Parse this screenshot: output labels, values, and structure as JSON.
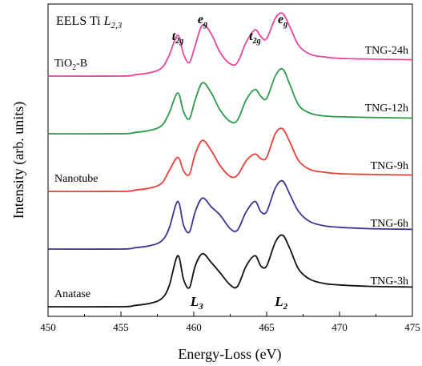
{
  "chart_data": {
    "type": "line",
    "title": "EELS Ti ",
    "title_sub": "L",
    "title_subscript": "2,3",
    "xlabel": "Energy-Loss (eV)",
    "ylabel": "Intensity (arb. units)",
    "xlim": [
      450,
      475
    ],
    "xticks": [
      450,
      455,
      460,
      465,
      470,
      475
    ],
    "y_ticks_shown": false,
    "grid": false,
    "legend": "none",
    "series": [
      {
        "name": "TNG-24h",
        "color": "#e8459a",
        "offset": 4,
        "points": [
          [
            450,
            0.0
          ],
          [
            455,
            0.0
          ],
          [
            456,
            0.02
          ],
          [
            457,
            0.05
          ],
          [
            457.8,
            0.12
          ],
          [
            458.3,
            0.3
          ],
          [
            458.9,
            0.6
          ],
          [
            459.3,
            0.32
          ],
          [
            459.7,
            0.2
          ],
          [
            460.1,
            0.45
          ],
          [
            460.6,
            0.75
          ],
          [
            461.2,
            0.62
          ],
          [
            461.8,
            0.35
          ],
          [
            462.5,
            0.18
          ],
          [
            463,
            0.2
          ],
          [
            463.6,
            0.5
          ],
          [
            464.2,
            0.68
          ],
          [
            464.6,
            0.58
          ],
          [
            465,
            0.55
          ],
          [
            465.6,
            0.85
          ],
          [
            466.1,
            0.92
          ],
          [
            466.6,
            0.72
          ],
          [
            467.2,
            0.45
          ],
          [
            468,
            0.32
          ],
          [
            469,
            0.28
          ],
          [
            470,
            0.26
          ],
          [
            472,
            0.25
          ],
          [
            475,
            0.24
          ]
        ]
      },
      {
        "name": "TNG-12h",
        "color": "#2e9a4e",
        "offset": 3,
        "points": [
          [
            450,
            0.0
          ],
          [
            455,
            0.0
          ],
          [
            456,
            0.02
          ],
          [
            457,
            0.05
          ],
          [
            457.8,
            0.12
          ],
          [
            458.3,
            0.3
          ],
          [
            458.9,
            0.6
          ],
          [
            459.3,
            0.32
          ],
          [
            459.7,
            0.22
          ],
          [
            460.1,
            0.5
          ],
          [
            460.6,
            0.75
          ],
          [
            461.2,
            0.6
          ],
          [
            461.8,
            0.35
          ],
          [
            462.5,
            0.18
          ],
          [
            463,
            0.2
          ],
          [
            463.6,
            0.5
          ],
          [
            464.2,
            0.65
          ],
          [
            464.6,
            0.55
          ],
          [
            465,
            0.52
          ],
          [
            465.6,
            0.85
          ],
          [
            466.1,
            0.95
          ],
          [
            466.6,
            0.72
          ],
          [
            467.2,
            0.42
          ],
          [
            468,
            0.3
          ],
          [
            469,
            0.26
          ],
          [
            470,
            0.25
          ],
          [
            472,
            0.24
          ],
          [
            475,
            0.23
          ]
        ]
      },
      {
        "name": "TNG-9h",
        "color": "#e8413a",
        "offset": 2,
        "points": [
          [
            450,
            0.0
          ],
          [
            455,
            0.0
          ],
          [
            456,
            0.02
          ],
          [
            457,
            0.05
          ],
          [
            457.8,
            0.12
          ],
          [
            458.3,
            0.3
          ],
          [
            458.9,
            0.5
          ],
          [
            459.3,
            0.3
          ],
          [
            459.7,
            0.25
          ],
          [
            460.1,
            0.55
          ],
          [
            460.6,
            0.75
          ],
          [
            461.2,
            0.6
          ],
          [
            461.8,
            0.38
          ],
          [
            462.5,
            0.22
          ],
          [
            463,
            0.24
          ],
          [
            463.6,
            0.45
          ],
          [
            464.2,
            0.55
          ],
          [
            464.6,
            0.48
          ],
          [
            465,
            0.5
          ],
          [
            465.6,
            0.85
          ],
          [
            466.1,
            0.92
          ],
          [
            466.6,
            0.72
          ],
          [
            467.2,
            0.45
          ],
          [
            468,
            0.32
          ],
          [
            469,
            0.28
          ],
          [
            470,
            0.26
          ],
          [
            472,
            0.25
          ],
          [
            475,
            0.24
          ]
        ]
      },
      {
        "name": "TNG-6h",
        "color": "#3d3592",
        "offset": 1,
        "points": [
          [
            450,
            0.0
          ],
          [
            455,
            0.0
          ],
          [
            456,
            0.02
          ],
          [
            457,
            0.05
          ],
          [
            457.8,
            0.12
          ],
          [
            458.3,
            0.3
          ],
          [
            458.9,
            0.7
          ],
          [
            459.3,
            0.35
          ],
          [
            459.7,
            0.25
          ],
          [
            460.1,
            0.55
          ],
          [
            460.6,
            0.75
          ],
          [
            461.2,
            0.62
          ],
          [
            461.8,
            0.5
          ],
          [
            462.5,
            0.3
          ],
          [
            463,
            0.28
          ],
          [
            463.6,
            0.55
          ],
          [
            464.2,
            0.7
          ],
          [
            464.6,
            0.55
          ],
          [
            465,
            0.55
          ],
          [
            465.6,
            0.9
          ],
          [
            466.1,
            1.0
          ],
          [
            466.6,
            0.8
          ],
          [
            467.2,
            0.55
          ],
          [
            468,
            0.4
          ],
          [
            469,
            0.34
          ],
          [
            470,
            0.32
          ],
          [
            472,
            0.3
          ],
          [
            475,
            0.29
          ]
        ]
      },
      {
        "name": "TNG-3h",
        "color": "#111111",
        "offset": 0,
        "points": [
          [
            450,
            0.0
          ],
          [
            455,
            0.0
          ],
          [
            456,
            0.02
          ],
          [
            457,
            0.05
          ],
          [
            457.8,
            0.12
          ],
          [
            458.3,
            0.3
          ],
          [
            458.9,
            0.75
          ],
          [
            459.3,
            0.4
          ],
          [
            459.7,
            0.28
          ],
          [
            460.1,
            0.6
          ],
          [
            460.6,
            0.78
          ],
          [
            461.2,
            0.65
          ],
          [
            461.8,
            0.5
          ],
          [
            462.5,
            0.32
          ],
          [
            463,
            0.3
          ],
          [
            463.6,
            0.6
          ],
          [
            464.2,
            0.75
          ],
          [
            464.6,
            0.6
          ],
          [
            465,
            0.6
          ],
          [
            465.6,
            0.95
          ],
          [
            466.1,
            1.05
          ],
          [
            466.6,
            0.85
          ],
          [
            467.2,
            0.55
          ],
          [
            468,
            0.4
          ],
          [
            469,
            0.34
          ],
          [
            470,
            0.32
          ],
          [
            472,
            0.3
          ],
          [
            475,
            0.29
          ]
        ]
      }
    ],
    "sample_labels": [
      {
        "text": "TiO",
        "sub": "2",
        "rest": "-B",
        "row": 4
      },
      {
        "text": "Nanotube",
        "row": 2
      },
      {
        "text": "Anatase",
        "row": 0
      }
    ],
    "annotations": {
      "peaks_top": [
        {
          "main": "t",
          "sub": "2g",
          "x": 458.9
        },
        {
          "main": "e",
          "sub": "g",
          "x": 460.6
        },
        {
          "main": "t",
          "sub": "2g",
          "x": 464.2
        },
        {
          "main": "e",
          "sub": "g",
          "x": 466.1
        }
      ],
      "edges_bottom": [
        {
          "main": "L",
          "sub": "3",
          "x": 460.2
        },
        {
          "main": "L",
          "sub": "2",
          "x": 466.0
        }
      ]
    }
  }
}
